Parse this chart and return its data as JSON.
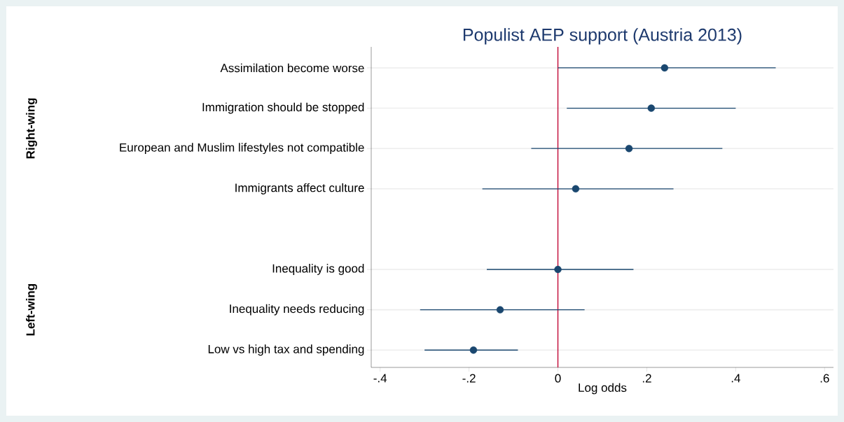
{
  "chart_data": {
    "type": "scatter",
    "orientation": "horizontal",
    "title": "Populist AEP support (Austria 2013)",
    "xlabel": "Log odds",
    "categories": [
      "Assimilation become worse",
      "Immigration should be stopped",
      "European and Muslim lifestyles not compatible",
      "Immigrants affect culture",
      null,
      "Inequality is good",
      "Inequality needs reducing",
      "Low vs high tax and spending"
    ],
    "values": [
      0.24,
      0.21,
      0.16,
      0.04,
      null,
      0.0,
      -0.13,
      -0.19
    ],
    "errors": [
      [
        0.0,
        0.49
      ],
      [
        0.02,
        0.4
      ],
      [
        -0.06,
        0.37
      ],
      [
        -0.17,
        0.26
      ],
      null,
      [
        -0.16,
        0.17
      ],
      [
        -0.31,
        0.06
      ],
      [
        -0.3,
        -0.09
      ]
    ],
    "color": "#1a476f",
    "grid": "y",
    "xlim": [
      -0.42,
      0.62
    ],
    "xticks": [
      {
        "value": -0.4,
        "label": "-.4"
      },
      {
        "value": -0.2,
        "label": "-.2"
      },
      0,
      {
        "value": 0.2,
        "label": ".2"
      },
      {
        "value": 0.4,
        "label": ".4"
      },
      {
        "value": 0.6,
        "label": ".6"
      }
    ],
    "ref_lines": [
      {
        "axis": "x",
        "value": 0,
        "color": "#c10534"
      }
    ],
    "annotations": [
      "Right-wing",
      "Left-wing"
    ]
  }
}
